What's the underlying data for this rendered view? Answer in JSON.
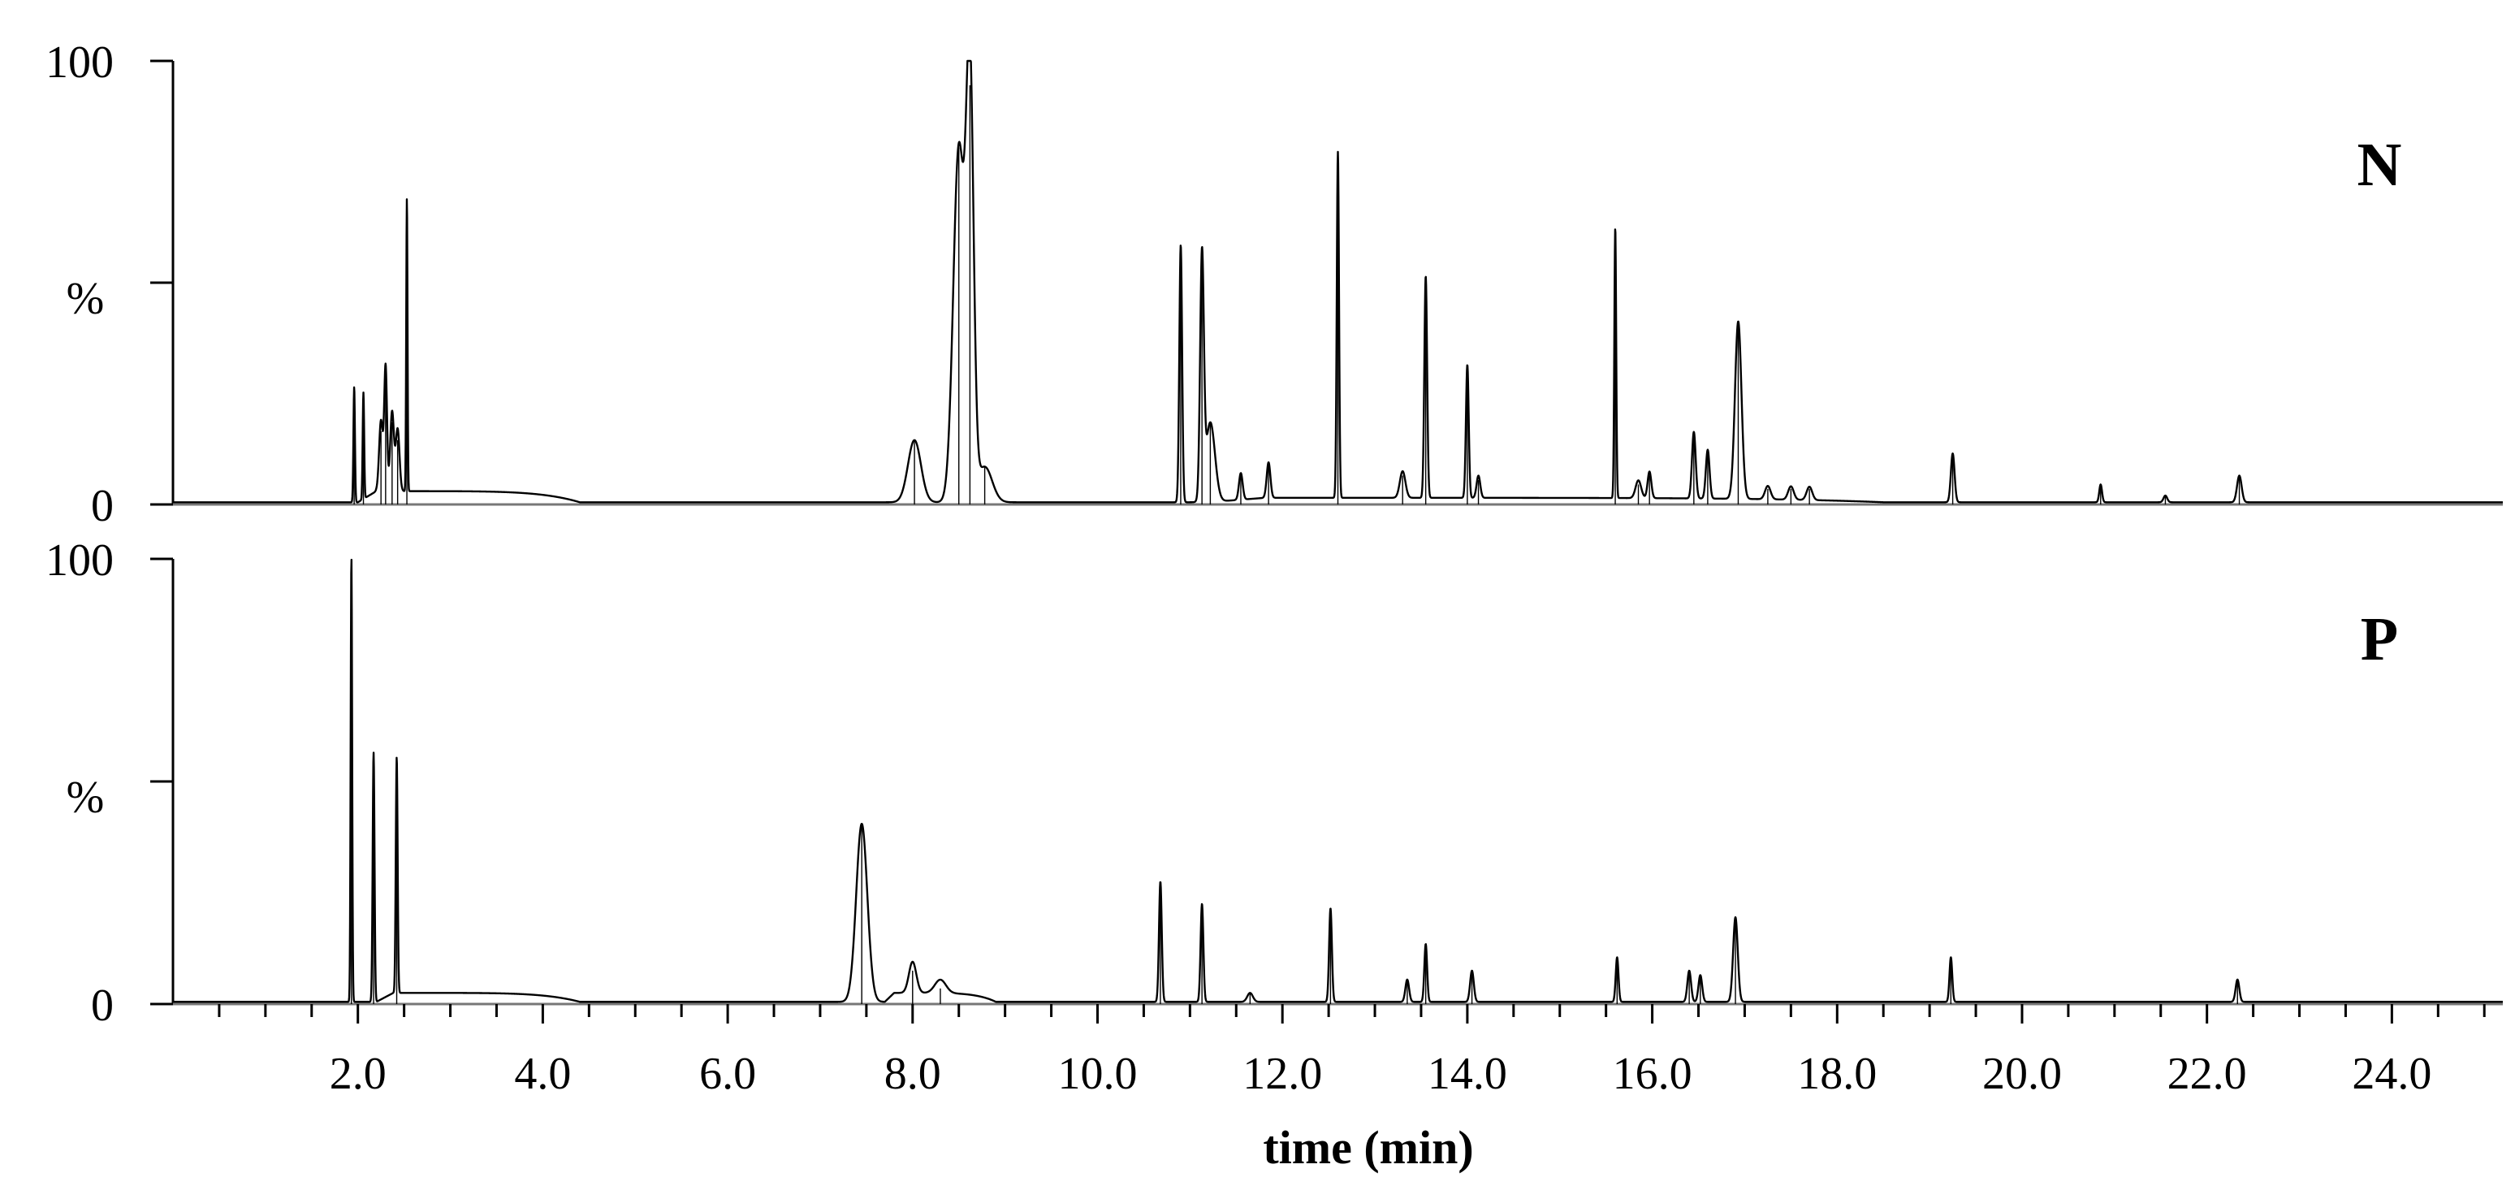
{
  "chart_data": [
    {
      "type": "line",
      "panel_label": "N",
      "ylabel": "%",
      "ytick_labels": [
        "0",
        "100"
      ],
      "ylim": [
        0,
        100
      ],
      "xlim": [
        0.0,
        25.2
      ],
      "line_color": "#000000",
      "baseline": 0.5,
      "peaks": [
        {
          "t": 1.96,
          "h": 26,
          "w": 0.008
        },
        {
          "t": 2.06,
          "h": 24,
          "w": 0.008
        },
        {
          "t": 2.25,
          "h": 16,
          "w": 0.02
        },
        {
          "t": 2.3,
          "h": 28,
          "w": 0.015
        },
        {
          "t": 2.37,
          "h": 18,
          "w": 0.02
        },
        {
          "t": 2.43,
          "h": 14,
          "w": 0.02
        },
        {
          "t": 2.53,
          "h": 66,
          "w": 0.007
        },
        {
          "t": 8.02,
          "h": 14,
          "w": 0.07
        },
        {
          "t": 8.5,
          "h": 80,
          "w": 0.06
        },
        {
          "t": 8.62,
          "h": 94,
          "w": 0.04
        },
        {
          "t": 8.78,
          "h": 8,
          "w": 0.08
        },
        {
          "t": 10.9,
          "h": 58,
          "w": 0.015
        },
        {
          "t": 11.13,
          "h": 54,
          "w": 0.02
        },
        {
          "t": 11.22,
          "h": 18,
          "w": 0.05
        },
        {
          "t": 11.55,
          "h": 6,
          "w": 0.02
        },
        {
          "t": 11.85,
          "h": 8,
          "w": 0.02
        },
        {
          "t": 12.6,
          "h": 78,
          "w": 0.012
        },
        {
          "t": 13.3,
          "h": 6,
          "w": 0.03
        },
        {
          "t": 13.55,
          "h": 50,
          "w": 0.015
        },
        {
          "t": 14.0,
          "h": 30,
          "w": 0.015
        },
        {
          "t": 14.12,
          "h": 5,
          "w": 0.02
        },
        {
          "t": 15.6,
          "h": 61,
          "w": 0.01
        },
        {
          "t": 15.85,
          "h": 4,
          "w": 0.03
        },
        {
          "t": 15.97,
          "h": 6,
          "w": 0.02
        },
        {
          "t": 16.45,
          "h": 15,
          "w": 0.02
        },
        {
          "t": 16.6,
          "h": 11,
          "w": 0.02
        },
        {
          "t": 16.93,
          "h": 40,
          "w": 0.035
        },
        {
          "t": 17.25,
          "h": 3,
          "w": 0.03
        },
        {
          "t": 17.5,
          "h": 3,
          "w": 0.03
        },
        {
          "t": 17.7,
          "h": 3,
          "w": 0.03
        },
        {
          "t": 19.25,
          "h": 11,
          "w": 0.02
        },
        {
          "t": 20.85,
          "h": 4,
          "w": 0.015
        },
        {
          "t": 21.55,
          "h": 1.5,
          "w": 0.02
        },
        {
          "t": 22.35,
          "h": 6,
          "w": 0.025
        }
      ],
      "humps": [
        {
          "t0": 2.0,
          "t1": 4.4,
          "h": 2.5
        },
        {
          "t0": 11.2,
          "t1": 18.5,
          "h": 1.0
        }
      ]
    },
    {
      "type": "line",
      "panel_label": "P",
      "ylabel": "%",
      "ytick_labels": [
        "0",
        "100"
      ],
      "ylim": [
        0,
        100
      ],
      "xlim": [
        0.0,
        25.2
      ],
      "line_color": "#000000",
      "baseline": 0.5,
      "peaks": [
        {
          "t": 1.93,
          "h": 100,
          "w": 0.008
        },
        {
          "t": 2.17,
          "h": 56,
          "w": 0.01
        },
        {
          "t": 2.42,
          "h": 53,
          "w": 0.01
        },
        {
          "t": 7.45,
          "h": 40,
          "w": 0.06
        },
        {
          "t": 8.0,
          "h": 7,
          "w": 0.04
        },
        {
          "t": 8.3,
          "h": 3,
          "w": 0.06
        },
        {
          "t": 10.68,
          "h": 27,
          "w": 0.015
        },
        {
          "t": 11.13,
          "h": 22,
          "w": 0.015
        },
        {
          "t": 11.65,
          "h": 2,
          "w": 0.03
        },
        {
          "t": 12.52,
          "h": 21,
          "w": 0.015
        },
        {
          "t": 13.35,
          "h": 5,
          "w": 0.02
        },
        {
          "t": 13.55,
          "h": 13,
          "w": 0.015
        },
        {
          "t": 14.05,
          "h": 7,
          "w": 0.02
        },
        {
          "t": 15.62,
          "h": 10,
          "w": 0.015
        },
        {
          "t": 16.4,
          "h": 7,
          "w": 0.02
        },
        {
          "t": 16.52,
          "h": 6,
          "w": 0.02
        },
        {
          "t": 16.9,
          "h": 19,
          "w": 0.025
        },
        {
          "t": 19.23,
          "h": 10,
          "w": 0.015
        },
        {
          "t": 22.33,
          "h": 5,
          "w": 0.02
        }
      ],
      "humps": [
        {
          "t0": 2.2,
          "t1": 4.4,
          "h": 2.0
        },
        {
          "t0": 7.7,
          "t1": 8.9,
          "h": 2.0
        }
      ]
    }
  ],
  "x_axis": {
    "tick_labels": [
      "2.0",
      "4.0",
      "6.0",
      "8.0",
      "10.0",
      "12.0",
      "14.0",
      "16.0",
      "18.0",
      "20.0",
      "22.0",
      "24.0"
    ],
    "tick_values": [
      2.0,
      4.0,
      6.0,
      8.0,
      10.0,
      12.0,
      14.0,
      16.0,
      18.0,
      20.0,
      22.0,
      24.0
    ],
    "minor_step": 0.5,
    "xlabel": "time (min)"
  }
}
